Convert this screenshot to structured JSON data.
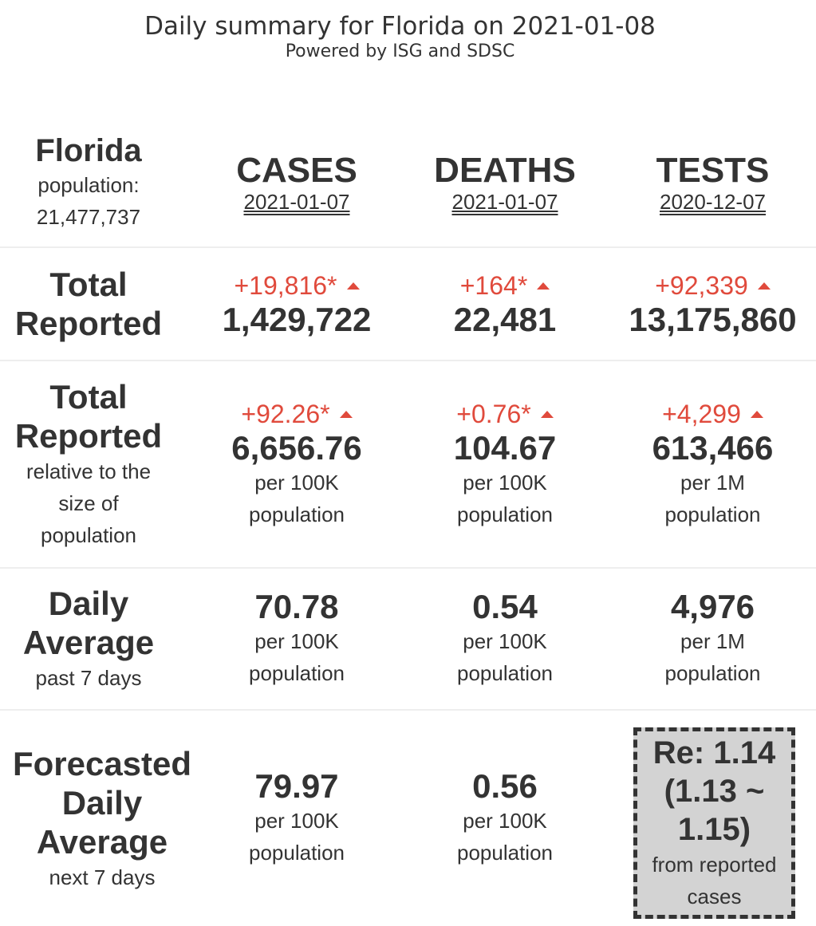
{
  "header": {
    "title": "Daily summary for Florida on 2021-01-08",
    "subtitle": "Powered by ISG and SDSC"
  },
  "region": {
    "name": "Florida",
    "population_label": "population:",
    "population_value": "21,477,737"
  },
  "columns": [
    {
      "label": "CASES",
      "date": "2021-01-07"
    },
    {
      "label": "DEATHS",
      "date": "2021-01-07"
    },
    {
      "label": "TESTS",
      "date": "2020-12-07"
    }
  ],
  "rows": {
    "total": {
      "title_line1": "Total",
      "title_line2": "Reported",
      "cases": {
        "delta": "+19,816*",
        "value": "1,429,722"
      },
      "deaths": {
        "delta": "+164*",
        "value": "22,481"
      },
      "tests": {
        "delta": "+92,339",
        "value": "13,175,860"
      }
    },
    "relative": {
      "title_line1": "Total",
      "title_line2": "Reported",
      "note_line1": "relative to the",
      "note_line2": "size of",
      "note_line3": "population",
      "cases": {
        "delta": "+92.26*",
        "value": "6,656.76",
        "unit1": "per 100K",
        "unit2": "population"
      },
      "deaths": {
        "delta": "+0.76*",
        "value": "104.67",
        "unit1": "per 100K",
        "unit2": "population"
      },
      "tests": {
        "delta": "+4,299",
        "value": "613,466",
        "unit1": "per 1M",
        "unit2": "population"
      }
    },
    "daily": {
      "title_line1": "Daily",
      "title_line2": "Average",
      "note": "past 7 days",
      "cases": {
        "value": "70.78",
        "unit1": "per 100K",
        "unit2": "population"
      },
      "deaths": {
        "value": "0.54",
        "unit1": "per 100K",
        "unit2": "population"
      },
      "tests": {
        "value": "4,976",
        "unit1": "per 1M",
        "unit2": "population"
      }
    },
    "forecast": {
      "title_line1": "Forecasted",
      "title_line2": "Daily",
      "title_line3": "Average",
      "note": "next 7 days",
      "cases": {
        "value": "79.97",
        "unit1": "per 100K",
        "unit2": "population"
      },
      "deaths": {
        "value": "0.56",
        "unit1": "per 100K",
        "unit2": "population"
      },
      "re": {
        "line1": "Re: 1.14",
        "line2": "(1.13 ~",
        "line3": "1.15)",
        "note1": "from reported",
        "note2": "cases"
      }
    }
  },
  "colors": {
    "text": "#333333",
    "delta_up": "#e04a3c",
    "re_box_bg": "#d3d3d3",
    "separator": "#eeeeee"
  },
  "icons": {
    "delta_indicator": "triangle-up-icon"
  }
}
